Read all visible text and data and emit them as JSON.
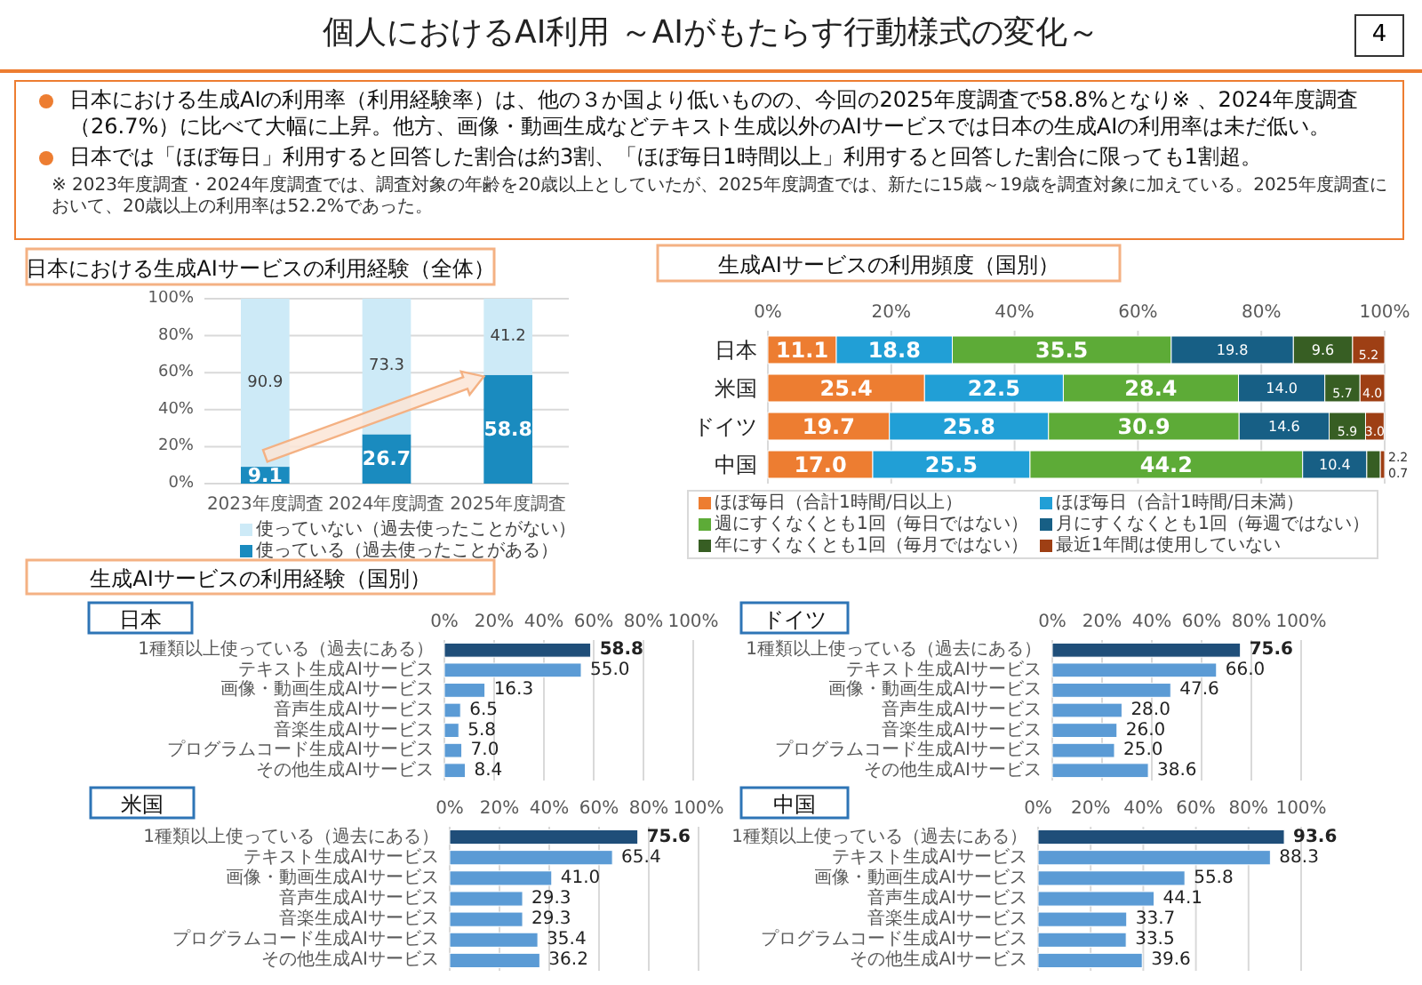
{
  "chart_data": [
    {
      "type": "other",
      "title": "個人におけるAI利用 ～AIがもたらす行動様式の変化～",
      "annotations": [
        "4",
        "日本における生成AIの利用率（利用経験率）は、他の３か国より低いものの、今回の2025年度調査で58.8%となり※ 、2024年度調査（26.7%）に比べて大幅に上昇。他方、画像・動画生成などテキスト生成以外のAIサービスでは日本の生成AIの利用率は未だ低い。",
        "日本では「ほぼ毎日」利用すると回答した割合は約3割、「ほぼ毎日1時間以上」利用すると回答した割合に限っても1割超。",
        "※ 2023年度調査・2024年度調査では、調査対象の年齢を20歳以上としていたが、2025年度調査では、新たに15歳～19歳を調査対象に加えている。2025年度調査において、20歳以上の利用率は52.2%であった。"
      ]
    },
    {
      "type": "bar",
      "title": "日本における生成AIサービスの利用経験（全体）",
      "stacked": true,
      "categories": [
        "2023年度調査",
        "2024年度調査",
        "2025年度調査"
      ],
      "series": [
        {
          "name": "使っている（過去使ったことがある）",
          "color": "#1a8bbf",
          "values": [
            9.1,
            26.7,
            58.8
          ]
        },
        {
          "name": "使っていない（過去使ったことがない）",
          "color": "#cdeaf7",
          "values": [
            90.9,
            73.3,
            41.2
          ]
        }
      ],
      "ylim": [
        0,
        100
      ],
      "yticks": [
        {
          "value": 0,
          "label": "0%"
        },
        {
          "value": 20,
          "label": "20%"
        },
        {
          "value": 40,
          "label": "40%"
        },
        {
          "value": 60,
          "label": "60%"
        },
        {
          "value": 80,
          "label": "80%"
        },
        {
          "value": 100,
          "label": "100%"
        }
      ],
      "grid": "y",
      "legend": "bottom",
      "data_labels": true
    },
    {
      "type": "bar",
      "title": "生成AIサービスの利用頻度（国別）",
      "stacked": true,
      "orientation": "horizontal",
      "categories": [
        "日本",
        "米国",
        "ドイツ",
        "中国"
      ],
      "series": [
        {
          "name": "ほぼ毎日（合計1時間/日以上）",
          "color": "#ed7d31",
          "values": [
            11.1,
            25.4,
            19.7,
            17.0
          ],
          "value_labels": [
            "11.1",
            "25.4",
            "19.7",
            "17.0"
          ]
        },
        {
          "name": "ほぼ毎日（合計1時間/日未満）",
          "color": "#219fd6",
          "values": [
            18.8,
            22.5,
            25.8,
            25.5
          ],
          "value_labels": [
            "18.8",
            "22.5",
            "25.8",
            "25.5"
          ]
        },
        {
          "name": "週にすくなくとも1回（毎日ではない）",
          "color": "#5dab37",
          "values": [
            35.5,
            28.4,
            30.9,
            44.2
          ],
          "value_labels": [
            "35.5",
            "28.4",
            "30.9",
            "44.2"
          ]
        },
        {
          "name": "月にすくなくとも1回（毎週ではない）",
          "color": "#175f85",
          "values": [
            19.8,
            14.0,
            14.6,
            10.4
          ],
          "value_labels": [
            "19.8",
            "14.0",
            "14.6",
            "10.4"
          ]
        },
        {
          "name": "年にすくなくとも1回（毎月ではない）",
          "color": "#375e23",
          "values": [
            9.6,
            5.7,
            5.9,
            2.2
          ],
          "value_labels": [
            "9.6",
            "5.7",
            "5.9",
            "2.2"
          ]
        },
        {
          "name": "最近1年間は使用していない",
          "color": "#9e3f14",
          "values": [
            5.2,
            4.0,
            3.0,
            0.7
          ],
          "value_labels": [
            "5.2",
            "4.0",
            "3.0",
            "0.7"
          ]
        }
      ],
      "xlim": [
        0,
        100
      ],
      "xticks": [
        {
          "value": 0,
          "label": "0%"
        },
        {
          "value": 20,
          "label": "20%"
        },
        {
          "value": 40,
          "label": "40%"
        },
        {
          "value": 60,
          "label": "60%"
        },
        {
          "value": 80,
          "label": "80%"
        },
        {
          "value": 100,
          "label": "100%"
        }
      ],
      "grid": "x",
      "legend": "bottom"
    },
    {
      "type": "other",
      "title": "生成AIサービスの利用経験（国別）"
    },
    {
      "type": "bar",
      "title": "日本",
      "orientation": "horizontal",
      "categories": [
        "1種類以上使っている（過去にある）",
        "テキスト生成AIサービス",
        "画像・動画生成AIサービス",
        "音声生成AIサービス",
        "音楽生成AIサービス",
        "プログラムコード生成AIサービス",
        "その他生成AIサービス"
      ],
      "values": [
        58.8,
        55.0,
        16.3,
        6.5,
        5.8,
        7.0,
        8.4
      ],
      "value_labels": [
        "58.8",
        "55.0",
        "16.3",
        "6.5",
        "5.8",
        "7.0",
        "8.4"
      ],
      "colors": [
        "#1f4e79",
        "#5b9bd5",
        "#5b9bd5",
        "#5b9bd5",
        "#5b9bd5",
        "#5b9bd5",
        "#5b9bd5"
      ],
      "xlim": [
        0,
        100
      ],
      "xticks": [
        {
          "value": 0,
          "label": "0%"
        },
        {
          "value": 20,
          "label": "20%"
        },
        {
          "value": 40,
          "label": "40%"
        },
        {
          "value": 60,
          "label": "60%"
        },
        {
          "value": 80,
          "label": "80%"
        },
        {
          "value": 100,
          "label": "100%"
        }
      ],
      "grid": "x"
    },
    {
      "type": "bar",
      "title": "ドイツ",
      "orientation": "horizontal",
      "categories": [
        "1種類以上使っている（過去にある）",
        "テキスト生成AIサービス",
        "画像・動画生成AIサービス",
        "音声生成AIサービス",
        "音楽生成AIサービス",
        "プログラムコード生成AIサービス",
        "その他生成AIサービス"
      ],
      "values": [
        75.6,
        66.0,
        47.6,
        28.0,
        26.0,
        25.0,
        38.6
      ],
      "value_labels": [
        "75.6",
        "66.0",
        "47.6",
        "28.0",
        "26.0",
        "25.0",
        "38.6"
      ],
      "colors": [
        "#1f4e79",
        "#5b9bd5",
        "#5b9bd5",
        "#5b9bd5",
        "#5b9bd5",
        "#5b9bd5",
        "#5b9bd5"
      ],
      "xlim": [
        0,
        100
      ],
      "xticks": [
        {
          "value": 0,
          "label": "0%"
        },
        {
          "value": 20,
          "label": "20%"
        },
        {
          "value": 40,
          "label": "40%"
        },
        {
          "value": 60,
          "label": "60%"
        },
        {
          "value": 80,
          "label": "80%"
        },
        {
          "value": 100,
          "label": "100%"
        }
      ],
      "grid": "x"
    },
    {
      "type": "bar",
      "title": "米国",
      "orientation": "horizontal",
      "categories": [
        "1種類以上使っている（過去にある）",
        "テキスト生成AIサービス",
        "画像・動画生成AIサービス",
        "音声生成AIサービス",
        "音楽生成AIサービス",
        "プログラムコード生成AIサービス",
        "その他生成AIサービス"
      ],
      "values": [
        75.6,
        65.4,
        41.0,
        29.3,
        29.3,
        35.4,
        36.2
      ],
      "value_labels": [
        "75.6",
        "65.4",
        "41.0",
        "29.3",
        "29.3",
        "35.4",
        "36.2"
      ],
      "colors": [
        "#1f4e79",
        "#5b9bd5",
        "#5b9bd5",
        "#5b9bd5",
        "#5b9bd5",
        "#5b9bd5",
        "#5b9bd5"
      ],
      "xlim": [
        0,
        100
      ],
      "xticks": [
        {
          "value": 0,
          "label": "0%"
        },
        {
          "value": 20,
          "label": "20%"
        },
        {
          "value": 40,
          "label": "40%"
        },
        {
          "value": 60,
          "label": "60%"
        },
        {
          "value": 80,
          "label": "80%"
        },
        {
          "value": 100,
          "label": "100%"
        }
      ],
      "grid": "x"
    },
    {
      "type": "bar",
      "title": "中国",
      "orientation": "horizontal",
      "categories": [
        "1種類以上使っている（過去にある）",
        "テキスト生成AIサービス",
        "画像・動画生成AIサービス",
        "音声生成AIサービス",
        "音楽生成AIサービス",
        "プログラムコード生成AIサービス",
        "その他生成AIサービス"
      ],
      "values": [
        93.6,
        88.3,
        55.8,
        44.1,
        33.7,
        33.5,
        39.6
      ],
      "value_labels": [
        "93.6",
        "88.3",
        "55.8",
        "44.1",
        "33.7",
        "33.5",
        "39.6"
      ],
      "colors": [
        "#1f4e79",
        "#5b9bd5",
        "#5b9bd5",
        "#5b9bd5",
        "#5b9bd5",
        "#5b9bd5",
        "#5b9bd5"
      ],
      "xlim": [
        0,
        100
      ],
      "xticks": [
        {
          "value": 0,
          "label": "0%"
        },
        {
          "value": 20,
          "label": "20%"
        },
        {
          "value": 40,
          "label": "40%"
        },
        {
          "value": 60,
          "label": "60%"
        },
        {
          "value": 80,
          "label": "80%"
        },
        {
          "value": 100,
          "label": "100%"
        }
      ],
      "grid": "x"
    }
  ]
}
